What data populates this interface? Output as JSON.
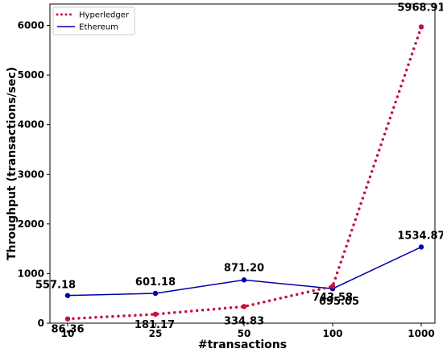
{
  "chart_data": {
    "type": "line",
    "categories": [
      "10",
      "25",
      "50",
      "100",
      "1000"
    ],
    "xlabel": "#transactions",
    "ylabel": "Throughput (transactions/sec)",
    "ylim": [
      0,
      6500
    ],
    "yticks": [
      0,
      1000,
      2000,
      3000,
      4000,
      5000,
      6000
    ],
    "grid": false,
    "legend_position": "top-left",
    "series": [
      {
        "name": "Hyperledger",
        "values": [
          86.36,
          181.17,
          334.83,
          743.58,
          5968.91
        ],
        "labels": [
          "86.36",
          "181.17",
          "334.83",
          "743.58",
          "5968.91"
        ],
        "color": "#c8103c",
        "style": "dotted"
      },
      {
        "name": "Ethereum",
        "values": [
          557.18,
          601.18,
          871.2,
          695.05,
          1534.87
        ],
        "labels": [
          "557.18",
          "601.18",
          "871.20",
          "695.05",
          "1534.87"
        ],
        "color": "#0000aa",
        "style": "solid"
      }
    ]
  }
}
